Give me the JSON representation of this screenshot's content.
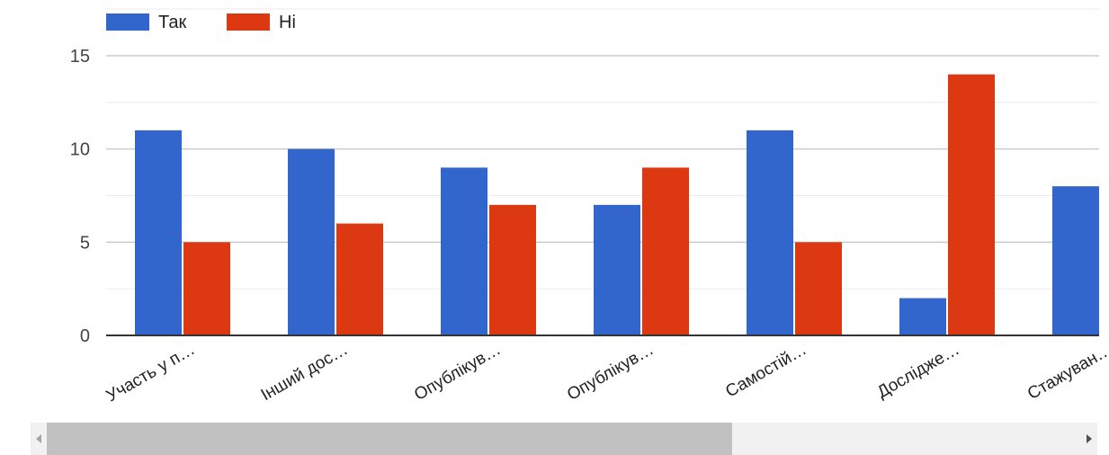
{
  "chart_data": {
    "type": "bar",
    "categories": [
      "Участь у п…",
      "Інший дос…",
      "Опублікув…",
      "Опублікув…",
      "Самостій…",
      "Дослідже…",
      "Стажуван…"
    ],
    "series": [
      {
        "name": "Так",
        "color": "#3366cc",
        "values": [
          11,
          10,
          9,
          7,
          11,
          2,
          8
        ]
      },
      {
        "name": "Ні",
        "color": "#dc3912",
        "values": [
          5,
          6,
          7,
          9,
          5,
          14,
          null
        ]
      }
    ],
    "ylim": [
      0,
      15
    ],
    "yticks": [
      0,
      5,
      10,
      15
    ],
    "grid": true,
    "legend_position": "top-left",
    "title": "",
    "xlabel": "",
    "ylabel": ""
  }
}
